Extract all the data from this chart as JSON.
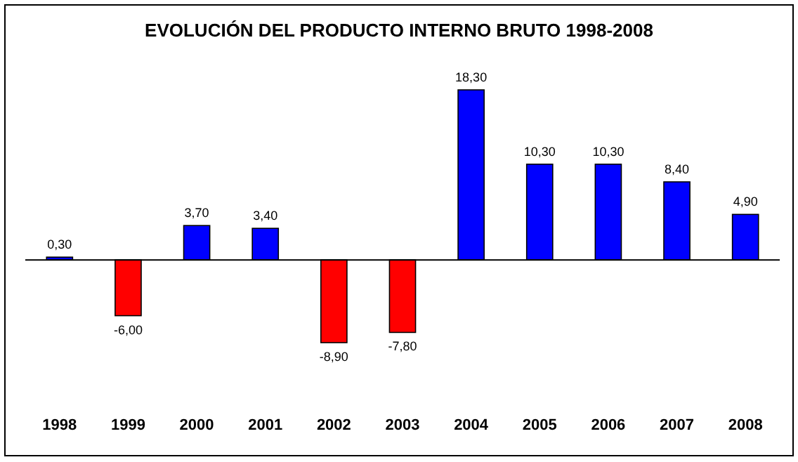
{
  "chart_data": {
    "type": "bar",
    "title": "EVOLUCIÓN DEL PRODUCTO INTERNO BRUTO 1998-2008",
    "categories": [
      "1998",
      "1999",
      "2000",
      "2001",
      "2002",
      "2003",
      "2004",
      "2005",
      "2006",
      "2007",
      "2008"
    ],
    "values": [
      0.3,
      -6.0,
      3.7,
      3.4,
      -8.9,
      -7.8,
      18.3,
      10.3,
      10.3,
      8.4,
      4.9
    ],
    "colors": [
      "#0000ff",
      "#ff0000",
      "#0000ff",
      "#0000ff",
      "#ff0000",
      "#ff0000",
      "#0000ff",
      "#0000ff",
      "#0000ff",
      "#0000ff",
      "#0000ff"
    ],
    "value_labels": [
      "0,30",
      "-6,00",
      "3,70",
      "3,40",
      "-8,90",
      "-7,80",
      "18,30",
      "10,30",
      "10,30",
      "8,40",
      "4,90"
    ]
  }
}
